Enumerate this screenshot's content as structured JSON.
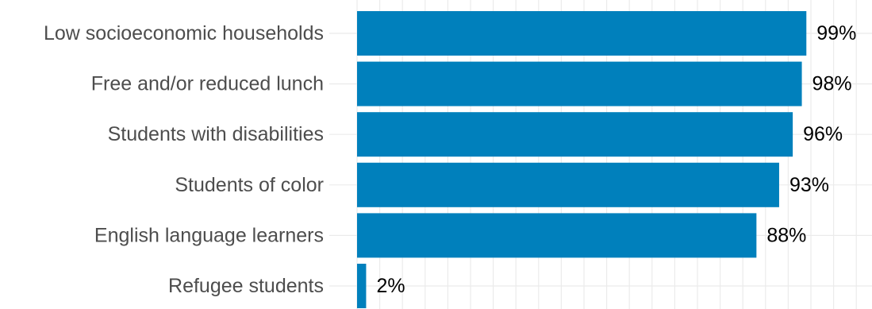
{
  "chart_data": {
    "type": "bar",
    "orientation": "horizontal",
    "categories": [
      "Low socioeconomic households",
      "Free and/or reduced lunch",
      "Students with disabilities",
      "Students of color",
      "English language learners",
      "Refugee students"
    ],
    "values": [
      99,
      98,
      96,
      93,
      88,
      2
    ],
    "value_labels": [
      "99%",
      "98%",
      "96%",
      "93%",
      "88%",
      "2%"
    ],
    "xlim": [
      0,
      110
    ],
    "grid": true,
    "bar_color": "#0080BC",
    "title": "",
    "xlabel": "",
    "ylabel": ""
  }
}
